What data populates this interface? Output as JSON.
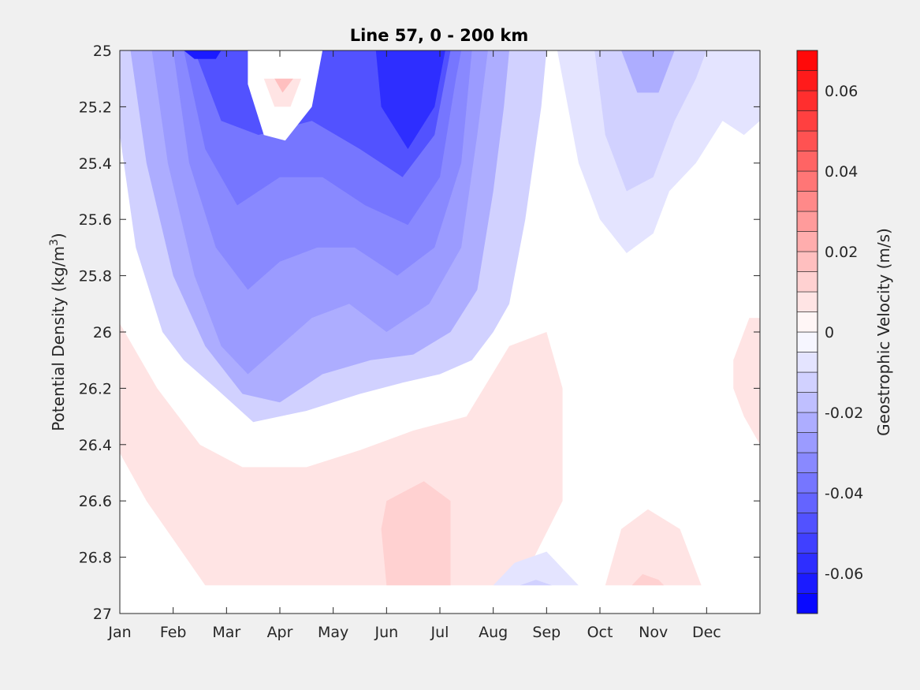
{
  "chart_data": {
    "type": "contourf",
    "title": "Line 57, 0 - 200 km",
    "ylabel": "Potential Density (kg/m",
    "ylabel_sup": "3",
    "ylabel_close": ")",
    "x_categories": [
      "Jan",
      "Feb",
      "Mar",
      "Apr",
      "May",
      "Jun",
      "Jul",
      "Aug",
      "Sep",
      "Oct",
      "Nov",
      "Dec"
    ],
    "xlim": [
      1,
      13
    ],
    "y_ticks": [
      "25",
      "25.2",
      "25.4",
      "25.6",
      "25.8",
      "26",
      "26.2",
      "26.4",
      "26.6",
      "26.8",
      "27"
    ],
    "ylim": [
      25,
      27
    ],
    "y_reversed": true,
    "colorbar": {
      "label": "Geostrophic Velocity (m/s)",
      "range": [
        -0.07,
        0.07
      ],
      "step": 0.005,
      "tick_labels": [
        "-0.06",
        "-0.04",
        "-0.02",
        "0",
        "0.02",
        "0.04",
        "0.06"
      ],
      "tick_values": [
        -0.06,
        -0.04,
        -0.02,
        0,
        0.02,
        0.04,
        0.06
      ],
      "colormap": "blue-white-red",
      "neg_color": "#0000ff",
      "pos_color": "#ff0000"
    },
    "grid": false,
    "regions": [
      {
        "name": "winter-spring negative core",
        "v": -0.01,
        "points": [
          [
            1,
            25
          ],
          [
            1,
            25.3
          ],
          [
            1.3,
            25.7
          ],
          [
            1.8,
            26
          ],
          [
            2.2,
            26.1
          ],
          [
            2.8,
            26.2
          ],
          [
            3.5,
            26.32
          ],
          [
            4.5,
            26.28
          ],
          [
            5.5,
            26.22
          ],
          [
            6.3,
            26.18
          ],
          [
            7,
            26.15
          ],
          [
            7.6,
            26.1
          ],
          [
            8,
            26
          ],
          [
            8.3,
            25.9
          ],
          [
            8.6,
            25.6
          ],
          [
            8.9,
            25.2
          ],
          [
            9,
            25
          ]
        ]
      },
      {
        "name": "winter-spring negative core",
        "v": -0.02,
        "points": [
          [
            1.2,
            25
          ],
          [
            1.5,
            25.4
          ],
          [
            2,
            25.8
          ],
          [
            2.6,
            26.05
          ],
          [
            3.3,
            26.22
          ],
          [
            4,
            26.25
          ],
          [
            4.8,
            26.15
          ],
          [
            5.7,
            26.1
          ],
          [
            6.5,
            26.08
          ],
          [
            7.2,
            26
          ],
          [
            7.7,
            25.85
          ],
          [
            8,
            25.5
          ],
          [
            8.2,
            25.2
          ],
          [
            8.3,
            25
          ]
        ]
      },
      {
        "name": "winter-spring negative core",
        "v": -0.025,
        "points": [
          [
            1.6,
            25
          ],
          [
            1.9,
            25.4
          ],
          [
            2.4,
            25.8
          ],
          [
            2.9,
            26.05
          ],
          [
            3.4,
            26.15
          ],
          [
            4,
            26.05
          ],
          [
            4.6,
            25.95
          ],
          [
            5.3,
            25.9
          ],
          [
            6,
            26
          ],
          [
            6.8,
            25.9
          ],
          [
            7.4,
            25.7
          ],
          [
            7.7,
            25.3
          ],
          [
            7.9,
            25
          ]
        ]
      },
      {
        "name": "winter-spring negative core",
        "v": -0.03,
        "points": [
          [
            2,
            25
          ],
          [
            2.3,
            25.4
          ],
          [
            2.8,
            25.7
          ],
          [
            3.4,
            25.85
          ],
          [
            4,
            25.75
          ],
          [
            4.7,
            25.7
          ],
          [
            5.4,
            25.7
          ],
          [
            6.2,
            25.8
          ],
          [
            6.9,
            25.7
          ],
          [
            7.4,
            25.4
          ],
          [
            7.6,
            25
          ]
        ]
      },
      {
        "name": "winter-spring negative core",
        "v": -0.035,
        "points": [
          [
            2.2,
            25
          ],
          [
            2.6,
            25.35
          ],
          [
            3.2,
            25.55
          ],
          [
            4,
            25.45
          ],
          [
            4.8,
            25.45
          ],
          [
            5.6,
            25.55
          ],
          [
            6.4,
            25.62
          ],
          [
            7,
            25.45
          ],
          [
            7.3,
            25.1
          ],
          [
            7.4,
            25
          ]
        ]
      },
      {
        "name": "winter-spring negative core",
        "v": -0.045,
        "points": [
          [
            2.4,
            25
          ],
          [
            2.9,
            25.25
          ],
          [
            3.6,
            25.3
          ],
          [
            4.6,
            25.25
          ],
          [
            5.5,
            25.35
          ],
          [
            6.3,
            25.45
          ],
          [
            6.9,
            25.3
          ],
          [
            7.2,
            25
          ]
        ]
      },
      {
        "name": "winter-spring negative core",
        "v": -0.055,
        "points": [
          [
            5.8,
            25
          ],
          [
            5.9,
            25.2
          ],
          [
            6.4,
            25.35
          ],
          [
            6.9,
            25.2
          ],
          [
            7.1,
            25
          ]
        ]
      },
      {
        "name": "winter-spring negative core",
        "v": -0.06,
        "points": [
          [
            2.2,
            25
          ],
          [
            2.4,
            25.03
          ],
          [
            2.8,
            25.03
          ],
          [
            2.9,
            25
          ]
        ]
      },
      {
        "name": "april positive pocket",
        "v": 0.0,
        "points": [
          [
            3.4,
            25
          ],
          [
            3.4,
            25.12
          ],
          [
            3.7,
            25.3
          ],
          [
            4.1,
            25.32
          ],
          [
            4.6,
            25.2
          ],
          [
            4.8,
            25
          ],
          [
            4.4,
            25
          ]
        ]
      },
      {
        "name": "april positive pocket",
        "v": 0.005,
        "points": [
          [
            3.7,
            25.1
          ],
          [
            3.9,
            25.2
          ],
          [
            4.2,
            25.2
          ],
          [
            4.4,
            25.1
          ]
        ]
      },
      {
        "name": "april positive pocket",
        "v": 0.015,
        "points": [
          [
            3.9,
            25.1
          ],
          [
            4.05,
            25.15
          ],
          [
            4.25,
            25.1
          ]
        ]
      },
      {
        "name": "autumn negative lobe",
        "v": -0.005,
        "points": [
          [
            9.2,
            25
          ],
          [
            9.6,
            25.4
          ],
          [
            10,
            25.6
          ],
          [
            10.5,
            25.72
          ],
          [
            11,
            25.65
          ],
          [
            11.3,
            25.5
          ],
          [
            11.8,
            25.4
          ],
          [
            12.3,
            25.25
          ],
          [
            12.7,
            25.3
          ],
          [
            13,
            25.25
          ],
          [
            13,
            25
          ]
        ]
      },
      {
        "name": "autumn negative lobe",
        "v": -0.01,
        "points": [
          [
            9.9,
            25
          ],
          [
            10.1,
            25.3
          ],
          [
            10.5,
            25.5
          ],
          [
            11,
            25.45
          ],
          [
            11.4,
            25.25
          ],
          [
            11.8,
            25.1
          ],
          [
            12,
            25
          ]
        ]
      },
      {
        "name": "autumn negative lobe",
        "v": -0.02,
        "points": [
          [
            10.4,
            25
          ],
          [
            10.7,
            25.15
          ],
          [
            11.1,
            25.15
          ],
          [
            11.4,
            25
          ]
        ]
      },
      {
        "name": "deep positive band",
        "v": 0.005,
        "points": [
          [
            1,
            25.97
          ],
          [
            1.7,
            26.2
          ],
          [
            2.5,
            26.4
          ],
          [
            3.3,
            26.48
          ],
          [
            4.5,
            26.48
          ],
          [
            5.5,
            26.42
          ],
          [
            6.5,
            26.35
          ],
          [
            7.5,
            26.3
          ],
          [
            8.3,
            26.05
          ],
          [
            9,
            26
          ],
          [
            9.3,
            26.2
          ],
          [
            9.3,
            26.6
          ],
          [
            8.5,
            26.9
          ],
          [
            2.6,
            26.9
          ],
          [
            1.5,
            26.6
          ],
          [
            1,
            26.43
          ]
        ]
      },
      {
        "name": "deep positive band",
        "v": 0.01,
        "points": [
          [
            6,
            26.6
          ],
          [
            6.7,
            26.53
          ],
          [
            7.2,
            26.6
          ],
          [
            7.2,
            26.9
          ],
          [
            6,
            26.9
          ],
          [
            5.9,
            26.7
          ]
        ]
      },
      {
        "name": "dec positive patch",
        "v": 0.005,
        "points": [
          [
            12.5,
            26.1
          ],
          [
            12.8,
            25.95
          ],
          [
            13,
            25.95
          ],
          [
            13,
            26.4
          ],
          [
            12.7,
            26.3
          ],
          [
            12.5,
            26.2
          ]
        ]
      },
      {
        "name": "nov deep positive",
        "v": 0.005,
        "points": [
          [
            10.1,
            26.9
          ],
          [
            10.4,
            26.7
          ],
          [
            10.9,
            26.63
          ],
          [
            11.5,
            26.7
          ],
          [
            11.9,
            26.9
          ]
        ]
      },
      {
        "name": "nov deep positive",
        "v": 0.01,
        "points": [
          [
            10.6,
            26.9
          ],
          [
            10.8,
            26.86
          ],
          [
            11.1,
            26.88
          ],
          [
            11.2,
            26.9
          ]
        ]
      },
      {
        "name": "aug deep negative",
        "v": -0.005,
        "points": [
          [
            8,
            26.9
          ],
          [
            8.4,
            26.82
          ],
          [
            9,
            26.78
          ],
          [
            9.5,
            26.88
          ],
          [
            9.6,
            26.9
          ]
        ]
      },
      {
        "name": "aug deep negative",
        "v": -0.01,
        "points": [
          [
            8.5,
            26.9
          ],
          [
            8.8,
            26.88
          ],
          [
            9.1,
            26.9
          ]
        ]
      }
    ]
  }
}
